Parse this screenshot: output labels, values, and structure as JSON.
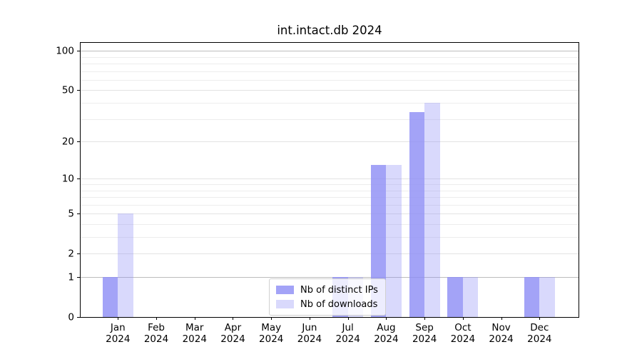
{
  "title": "int.intact.db 2024",
  "chart_data": {
    "type": "bar",
    "title": "int.intact.db 2024",
    "year_label": "2024",
    "categories": [
      "Jan",
      "Feb",
      "Mar",
      "Apr",
      "May",
      "Jun",
      "Jul",
      "Aug",
      "Sep",
      "Oct",
      "Nov",
      "Dec"
    ],
    "series": [
      {
        "name": "Nb of distinct IPs",
        "color": "rgba(140,140,245,0.8)",
        "values": [
          1,
          0,
          0,
          0,
          0,
          0,
          1,
          13,
          34,
          1,
          0,
          1
        ]
      },
      {
        "name": "Nb of downloads",
        "color": "rgba(140,140,245,0.33)",
        "values": [
          5,
          0,
          0,
          0,
          0,
          0,
          1,
          13,
          40,
          1,
          0,
          1
        ]
      }
    ],
    "yscale": "log1p",
    "ylim": [
      0,
      115
    ],
    "y_major_ticks": [
      100,
      50,
      20,
      10,
      5,
      2,
      1,
      0
    ],
    "y_minor_ticks": [
      3,
      4,
      6,
      7,
      8,
      9,
      30,
      40,
      60,
      70,
      80,
      90
    ],
    "grid": true,
    "legend_position": "lower center",
    "colors": {
      "spine": "#000000",
      "grid_major_strong": "#bdbdbd",
      "grid_major": "#e3e3e3",
      "grid_minor": "#ededed"
    }
  }
}
